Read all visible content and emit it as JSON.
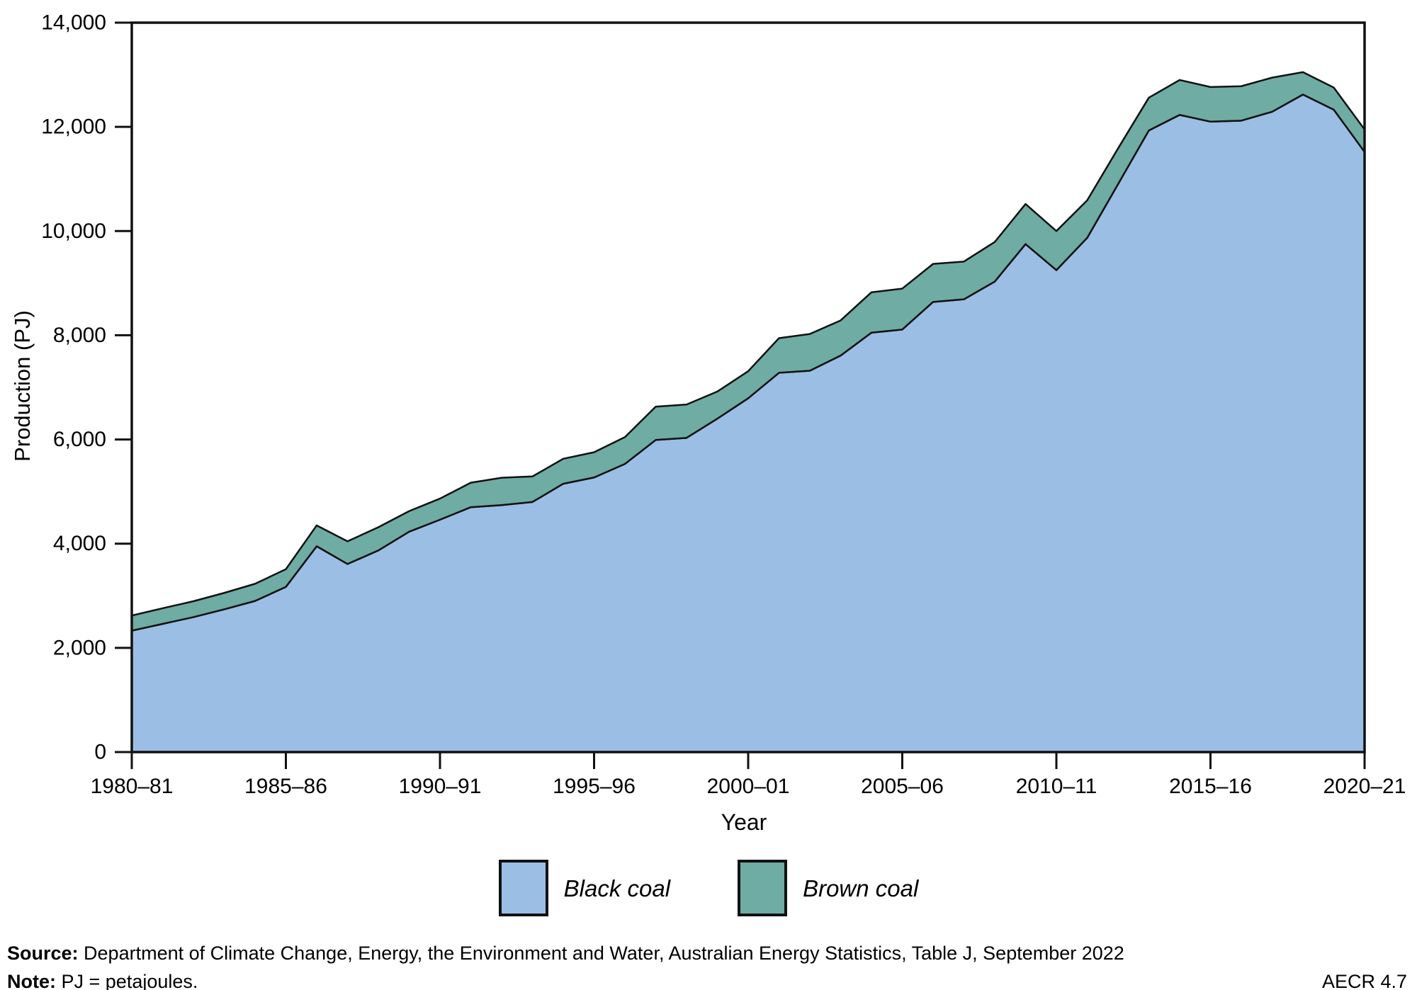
{
  "chart_data": {
    "type": "area",
    "stacked": true,
    "title": "",
    "xlabel": "Year",
    "ylabel": "Production (PJ)",
    "ylim": [
      0,
      14000
    ],
    "y_tick_step": 2000,
    "y_tick_labels": [
      "0",
      "2,000",
      "4,000",
      "6,000",
      "8,000",
      "10,000",
      "12,000",
      "14,000"
    ],
    "x_tick_every": 5,
    "x_tick_labels": [
      "1980–81",
      "1985–86",
      "1990–91",
      "1995–96",
      "2000–01",
      "2005–06",
      "2010–11",
      "2015–16",
      "2020–21"
    ],
    "grid": false,
    "legend_position": "bottom",
    "outline_color": "#111111",
    "frame_color": "#111111",
    "x_categories": [
      "1980–81",
      "1981–82",
      "1982–83",
      "1983–84",
      "1984–85",
      "1985–86",
      "1986–87",
      "1987–88",
      "1988–89",
      "1989–90",
      "1990–91",
      "1991–92",
      "1992–93",
      "1993–94",
      "1994–95",
      "1995–96",
      "1996–97",
      "1997–98",
      "1998–99",
      "1999–00",
      "2000–01",
      "2001–02",
      "2002–03",
      "2003–04",
      "2004–05",
      "2005–06",
      "2006–07",
      "2007–08",
      "2008–09",
      "2009–10",
      "2010–11",
      "2011–12",
      "2012–13",
      "2013–14",
      "2014–15",
      "2015–16",
      "2016–17",
      "2017–18",
      "2018–19",
      "2019–20",
      "2020–21"
    ],
    "series": [
      {
        "name": "Black coal",
        "color": "#9bbee5",
        "values": [
          2330,
          2460,
          2590,
          2740,
          2900,
          3170,
          3950,
          3610,
          3870,
          4230,
          4460,
          4700,
          4740,
          4800,
          5150,
          5270,
          5530,
          5990,
          6030,
          6400,
          6790,
          7280,
          7320,
          7610,
          8050,
          8110,
          8640,
          8690,
          9030,
          9750,
          9250,
          9870,
          10900,
          11930,
          12230,
          12100,
          12120,
          12290,
          12620,
          12330,
          11520
        ]
      },
      {
        "name": "Brown coal",
        "color": "#6faca3",
        "values": [
          290,
          300,
          305,
          315,
          330,
          340,
          400,
          435,
          445,
          395,
          405,
          470,
          525,
          490,
          480,
          485,
          515,
          640,
          640,
          520,
          520,
          665,
          705,
          675,
          775,
          785,
          730,
          725,
          760,
          770,
          750,
          720,
          685,
          630,
          670,
          665,
          660,
          655,
          430,
          425,
          430
        ]
      }
    ]
  },
  "footer": {
    "source_label": "Source:",
    "source_text": " Department of Climate Change, Energy, the Environment and Water, Australian Energy Statistics, Table J, September 2022",
    "note_label": "Note:",
    "note_text": " PJ = petajoules.",
    "code": "AECR 4.7"
  }
}
